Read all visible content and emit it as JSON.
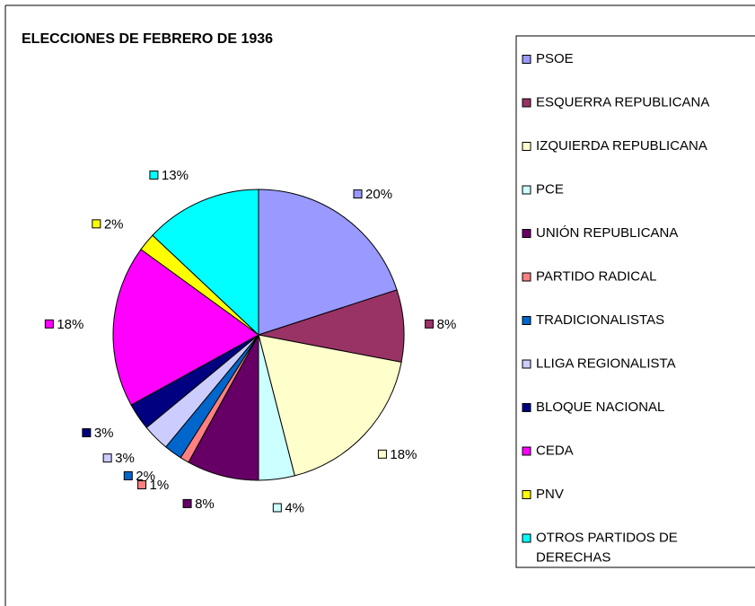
{
  "chart_data": {
    "type": "pie",
    "title": "ELECCIONES DE FEBRERO DE 1936",
    "categories": [
      "PSOE",
      "ESQUERRA REPUBLICANA",
      "IZQUIERDA REPUBLICANA",
      "PCE",
      "UNIÓN REPUBLICANA",
      "PARTIDO RADICAL",
      "TRADICIONALISTAS",
      "LLIGA REGIONALISTA",
      "BLOQUE NACIONAL",
      "CEDA",
      "PNV",
      "OTROS PARTIDOS DE DERECHAS"
    ],
    "values": [
      20,
      8,
      18,
      4,
      8,
      1,
      2,
      3,
      3,
      18,
      2,
      13
    ],
    "value_labels": [
      "20%",
      "8%",
      "18%",
      "4%",
      "8%",
      "1%",
      "2%",
      "3%",
      "3%",
      "18%",
      "2%",
      "13%"
    ],
    "colors": [
      "#9999ff",
      "#993366",
      "#ffffcc",
      "#ccffff",
      "#660066",
      "#ff8080",
      "#0066cc",
      "#ccccff",
      "#000080",
      "#ff00ff",
      "#ffff00",
      "#00ffff"
    ],
    "legend": "right"
  }
}
